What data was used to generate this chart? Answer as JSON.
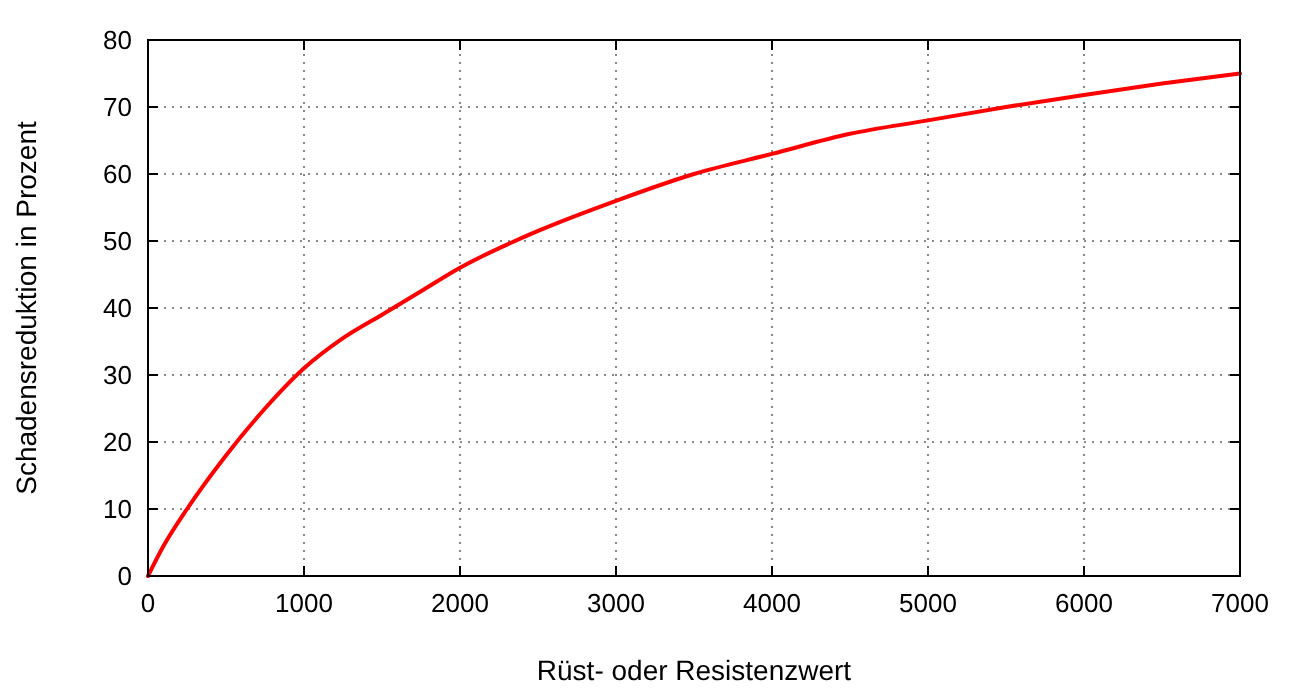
{
  "chart_data": {
    "type": "line",
    "xlabel": "Rüst- oder Resistenzwert",
    "ylabel": "Schadensreduktion in Prozent",
    "x": [
      0,
      100,
      250,
      500,
      750,
      1000,
      1250,
      1500,
      1750,
      2000,
      2500,
      3000,
      3500,
      4000,
      4500,
      5000,
      5500,
      6000,
      6500,
      7000
    ],
    "series": [
      {
        "color": "#ff0000",
        "values": [
          0,
          4.5,
          10,
          18,
          25,
          31,
          35.5,
          39,
          42.5,
          46,
          51.5,
          56,
          60,
          63,
          66,
          68,
          70,
          71.8,
          73.5,
          75
        ]
      }
    ],
    "xlim": [
      0,
      7000
    ],
    "xticks": [
      0,
      1000,
      2000,
      3000,
      4000,
      5000,
      6000,
      7000
    ],
    "ylim": [
      0,
      80
    ],
    "yticks": [
      0,
      10,
      20,
      30,
      40,
      50,
      60,
      70,
      80
    ],
    "grid": true,
    "marker": "none",
    "line_style": "solid"
  }
}
